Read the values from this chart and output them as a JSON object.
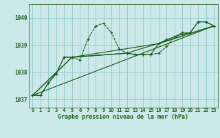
{
  "title": "Graphe pression niveau de la mer (hPa)",
  "bg_color": "#cce8e8",
  "grid_color": "#99cccc",
  "line_color": "#1a5c1a",
  "marker_color": "#1a5c1a",
  "xlim": [
    -0.5,
    23.5
  ],
  "ylim": [
    1036.7,
    1040.5
  ],
  "yticks": [
    1037,
    1038,
    1039,
    1040
  ],
  "ytick_labels": [
    "1037",
    "1038",
    "1039",
    "1040"
  ],
  "xtick_labels": [
    "0",
    "1",
    "2",
    "3",
    "4",
    "5",
    "6",
    "7",
    "8",
    "9",
    "10",
    "11",
    "12",
    "13",
    "14",
    "15",
    "16",
    "17",
    "18",
    "19",
    "20",
    "21",
    "22",
    "23"
  ],
  "series1_x": [
    0,
    1,
    2,
    3,
    4,
    5,
    6,
    7,
    8,
    9,
    10,
    11,
    12,
    13,
    14,
    15,
    16,
    17,
    18,
    19,
    20,
    21,
    22,
    23
  ],
  "series1_y": [
    1037.15,
    1037.15,
    1037.6,
    1037.95,
    1038.55,
    1038.55,
    1038.45,
    1039.2,
    1039.7,
    1039.8,
    1039.45,
    1038.85,
    1038.7,
    1038.65,
    1038.65,
    1038.65,
    1038.7,
    1038.95,
    1039.3,
    1039.45,
    1039.45,
    1039.85,
    1039.85,
    1039.7
  ],
  "series2_x": [
    0,
    1,
    2,
    3,
    4,
    5,
    12,
    13,
    14,
    15,
    16,
    17,
    18,
    19,
    20,
    21,
    22,
    23
  ],
  "series2_y": [
    1037.15,
    1037.15,
    1037.6,
    1037.95,
    1038.55,
    1038.55,
    1038.7,
    1038.65,
    1038.65,
    1038.65,
    1039.05,
    1039.2,
    1039.3,
    1039.4,
    1039.45,
    1039.85,
    1039.85,
    1039.7
  ],
  "series3_x": [
    0,
    23
  ],
  "series3_y": [
    1037.15,
    1039.7
  ],
  "series4_x": [
    0,
    5,
    16,
    23
  ],
  "series4_y": [
    1037.15,
    1038.55,
    1039.05,
    1039.7
  ],
  "series5_x": [
    0,
    5,
    12,
    23
  ],
  "series5_y": [
    1037.15,
    1038.55,
    1038.7,
    1039.7
  ]
}
